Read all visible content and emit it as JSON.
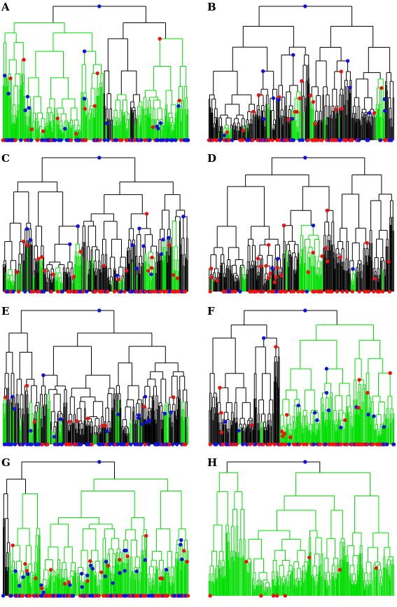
{
  "figure": {
    "panels": [
      {
        "label": "A",
        "style": "green-heavy",
        "red_density": "moderate",
        "blue_density": "high"
      },
      {
        "label": "B",
        "style": "black-heavy",
        "red_density": "high",
        "blue_density": "moderate"
      },
      {
        "label": "C",
        "style": "mixed",
        "red_density": "high",
        "blue_density": "moderate"
      },
      {
        "label": "D",
        "style": "black-heavy",
        "red_density": "high",
        "blue_density": "low"
      },
      {
        "label": "E",
        "style": "mixed",
        "red_density": "moderate",
        "blue_density": "high"
      },
      {
        "label": "F",
        "style": "black-heavy",
        "red_density": "high",
        "blue_density": "moderate"
      },
      {
        "label": "G",
        "style": "mixed",
        "red_density": "high",
        "blue_density": "high"
      },
      {
        "label": "H",
        "style": "green-heavy",
        "red_density": "low",
        "blue_density": "none"
      }
    ],
    "colors": {
      "tree_primary": "#000000",
      "tree_secondary": "#00dd00",
      "node_red": "#ee1111",
      "node_blue": "#1111dd"
    }
  }
}
